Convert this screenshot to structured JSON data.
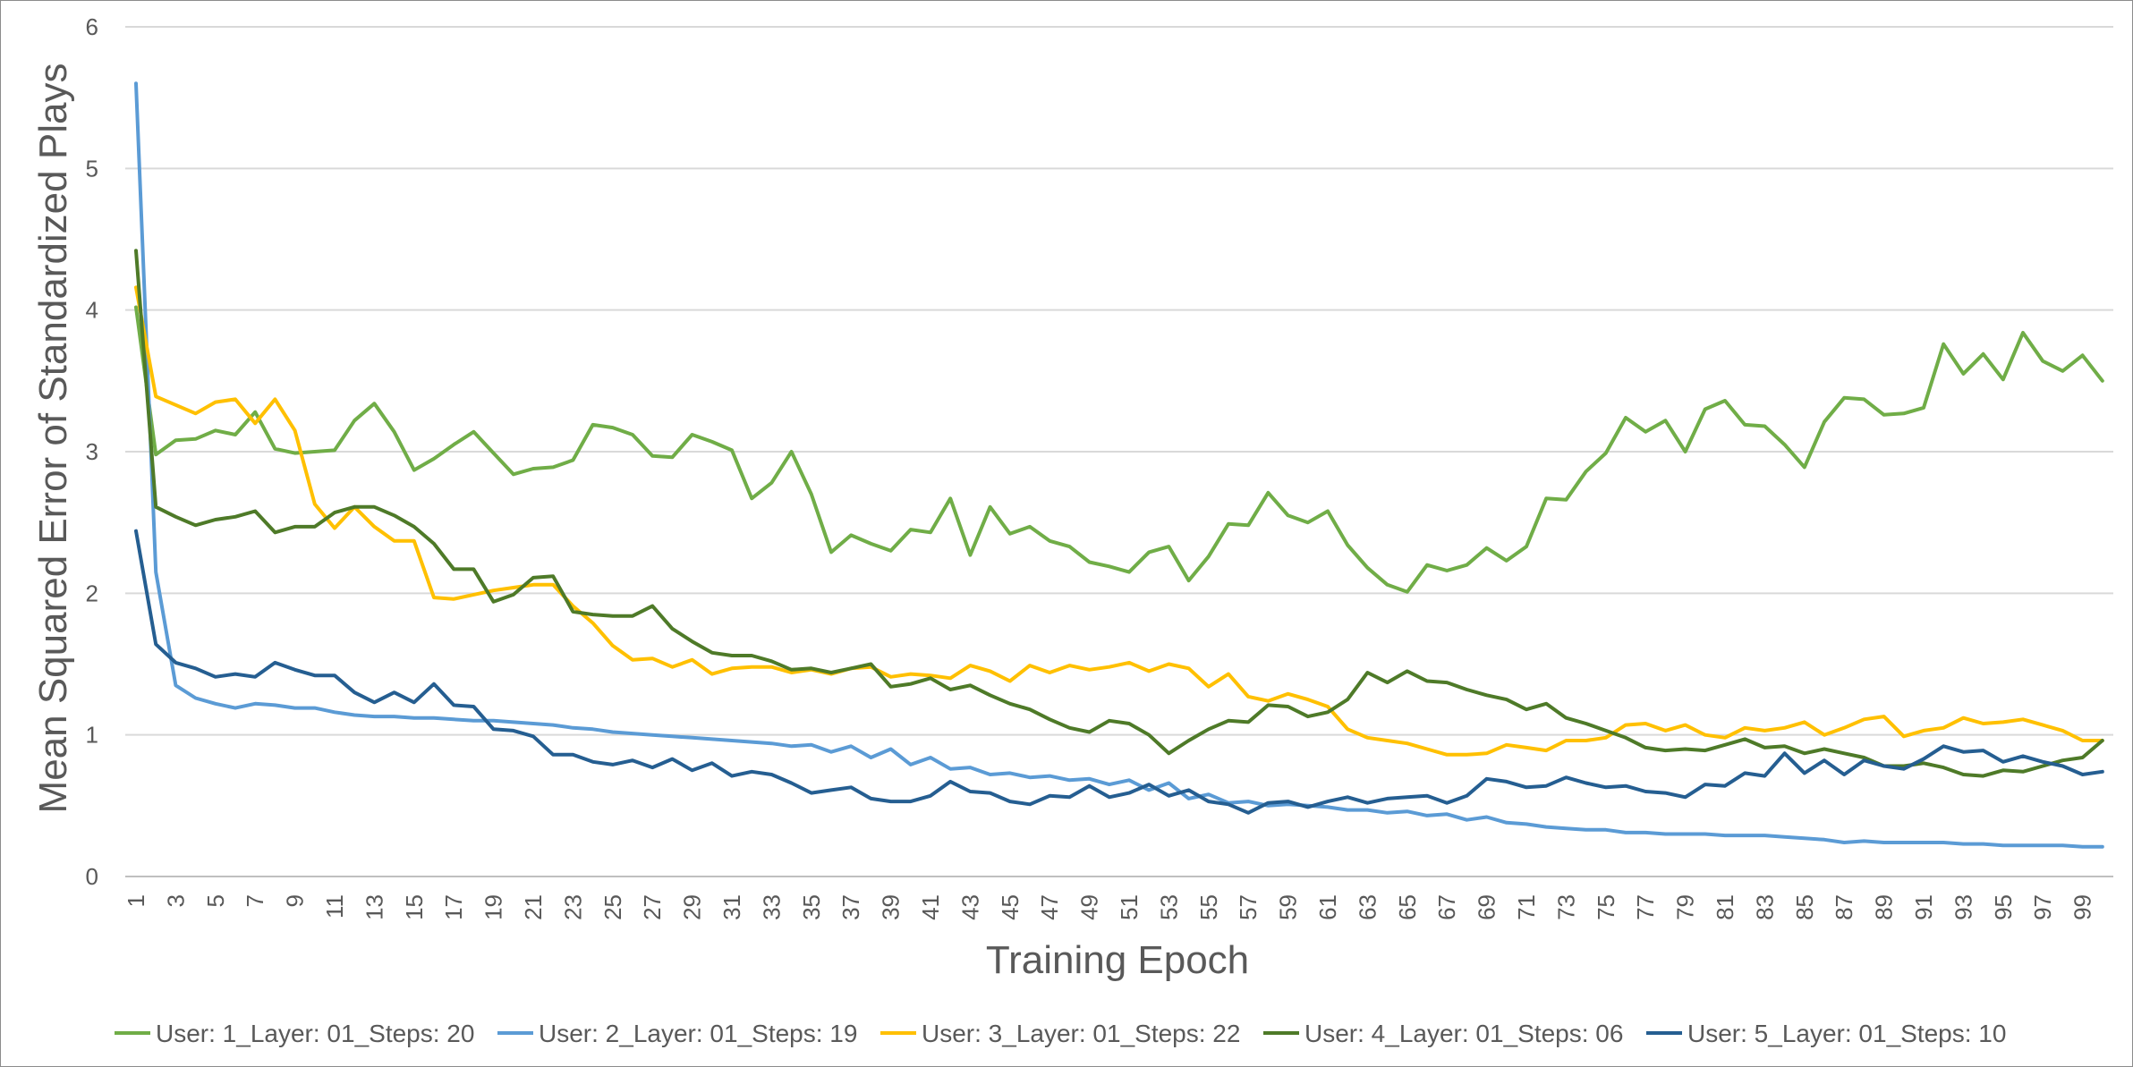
{
  "chart_data": {
    "type": "line",
    "xlabel": "Training Epoch",
    "ylabel": "Mean Squared Error of Standardized Plays",
    "ylim": [
      0,
      6
    ],
    "yticks": [
      0,
      1,
      2,
      3,
      4,
      5,
      6
    ],
    "xlim": [
      1,
      100
    ],
    "xticks": [
      1,
      3,
      5,
      7,
      9,
      11,
      13,
      15,
      17,
      19,
      21,
      23,
      25,
      27,
      29,
      31,
      33,
      35,
      37,
      39,
      41,
      43,
      45,
      47,
      49,
      51,
      53,
      55,
      57,
      59,
      61,
      63,
      65,
      67,
      69,
      71,
      73,
      75,
      77,
      79,
      81,
      83,
      85,
      87,
      89,
      91,
      93,
      95,
      97,
      99
    ],
    "grid": "horizontal",
    "legend_position": "bottom",
    "series": [
      {
        "name": "User: 1_Layer: 01_Steps: 20",
        "color": "#70ad47",
        "values": [
          4.02,
          2.98,
          3.08,
          3.09,
          3.15,
          3.12,
          3.28,
          3.02,
          2.99,
          3.0,
          3.01,
          3.22,
          3.34,
          3.14,
          2.87,
          2.95,
          3.05,
          3.14,
          2.99,
          2.84,
          2.88,
          2.89,
          2.94,
          3.19,
          3.17,
          3.12,
          2.97,
          2.96,
          3.12,
          3.07,
          3.01,
          2.67,
          2.78,
          3.0,
          2.7,
          2.29,
          2.41,
          2.35,
          2.3,
          2.45,
          2.43,
          2.67,
          2.27,
          2.61,
          2.42,
          2.47,
          2.37,
          2.33,
          2.22,
          2.19,
          2.15,
          2.29,
          2.33,
          2.09,
          2.26,
          2.49,
          2.48,
          2.71,
          2.55,
          2.5,
          2.58,
          2.34,
          2.18,
          2.06,
          2.01,
          2.2,
          2.16,
          2.2,
          2.32,
          2.23,
          2.33,
          2.67,
          2.66,
          2.86,
          2.99,
          3.24,
          3.14,
          3.22,
          3.0,
          3.3,
          3.36,
          3.19,
          3.18,
          3.05,
          2.89,
          3.21,
          3.38,
          3.37,
          3.26,
          3.27,
          3.31,
          3.76,
          3.55,
          3.69,
          3.51,
          3.84,
          3.64,
          3.57,
          3.68,
          3.5
        ]
      },
      {
        "name": "User: 2_Layer: 01_Steps: 19",
        "color": "#5b9bd5",
        "values": [
          5.6,
          2.15,
          1.35,
          1.26,
          1.22,
          1.19,
          1.22,
          1.21,
          1.19,
          1.19,
          1.16,
          1.14,
          1.13,
          1.13,
          1.12,
          1.12,
          1.11,
          1.1,
          1.1,
          1.09,
          1.08,
          1.07,
          1.05,
          1.04,
          1.02,
          1.01,
          1.0,
          0.99,
          0.98,
          0.97,
          0.96,
          0.95,
          0.94,
          0.92,
          0.93,
          0.88,
          0.92,
          0.84,
          0.9,
          0.79,
          0.84,
          0.76,
          0.77,
          0.72,
          0.73,
          0.7,
          0.71,
          0.68,
          0.69,
          0.65,
          0.68,
          0.61,
          0.66,
          0.55,
          0.58,
          0.52,
          0.53,
          0.5,
          0.51,
          0.5,
          0.49,
          0.47,
          0.47,
          0.45,
          0.46,
          0.43,
          0.44,
          0.4,
          0.42,
          0.38,
          0.37,
          0.35,
          0.34,
          0.33,
          0.33,
          0.31,
          0.31,
          0.3,
          0.3,
          0.3,
          0.29,
          0.29,
          0.29,
          0.28,
          0.27,
          0.26,
          0.24,
          0.25,
          0.24,
          0.24,
          0.24,
          0.24,
          0.23,
          0.23,
          0.22,
          0.22,
          0.22,
          0.22,
          0.21,
          0.21
        ]
      },
      {
        "name": "User: 3_Layer: 01_Steps: 22",
        "color": "#ffc000",
        "values": [
          4.16,
          3.39,
          3.33,
          3.27,
          3.35,
          3.37,
          3.2,
          3.37,
          3.15,
          2.63,
          2.46,
          2.61,
          2.47,
          2.37,
          2.37,
          1.97,
          1.96,
          1.99,
          2.02,
          2.04,
          2.06,
          2.06,
          1.91,
          1.79,
          1.63,
          1.53,
          1.54,
          1.48,
          1.53,
          1.43,
          1.47,
          1.48,
          1.48,
          1.44,
          1.46,
          1.43,
          1.47,
          1.48,
          1.41,
          1.43,
          1.42,
          1.4,
          1.49,
          1.45,
          1.38,
          1.49,
          1.44,
          1.49,
          1.46,
          1.48,
          1.51,
          1.45,
          1.5,
          1.47,
          1.34,
          1.43,
          1.27,
          1.24,
          1.29,
          1.25,
          1.2,
          1.04,
          0.98,
          0.96,
          0.94,
          0.9,
          0.86,
          0.86,
          0.87,
          0.93,
          0.91,
          0.89,
          0.96,
          0.96,
          0.98,
          1.07,
          1.08,
          1.03,
          1.07,
          1.0,
          0.98,
          1.05,
          1.03,
          1.05,
          1.09,
          1.0,
          1.05,
          1.11,
          1.13,
          0.99,
          1.03,
          1.05,
          1.12,
          1.08,
          1.09,
          1.11,
          1.07,
          1.03,
          0.96,
          0.96
        ]
      },
      {
        "name": "User: 4_Layer: 01_Steps: 06",
        "color": "#4e7a28",
        "values": [
          4.42,
          2.61,
          2.54,
          2.48,
          2.52,
          2.54,
          2.58,
          2.43,
          2.47,
          2.47,
          2.57,
          2.61,
          2.61,
          2.55,
          2.47,
          2.35,
          2.17,
          2.17,
          1.94,
          1.99,
          2.11,
          2.12,
          1.87,
          1.85,
          1.84,
          1.84,
          1.91,
          1.75,
          1.66,
          1.58,
          1.56,
          1.56,
          1.52,
          1.46,
          1.47,
          1.44,
          1.47,
          1.5,
          1.34,
          1.36,
          1.4,
          1.32,
          1.35,
          1.28,
          1.22,
          1.18,
          1.11,
          1.05,
          1.02,
          1.1,
          1.08,
          1.0,
          0.87,
          0.96,
          1.04,
          1.1,
          1.09,
          1.21,
          1.2,
          1.13,
          1.16,
          1.25,
          1.44,
          1.37,
          1.45,
          1.38,
          1.37,
          1.32,
          1.28,
          1.25,
          1.18,
          1.22,
          1.12,
          1.08,
          1.03,
          0.98,
          0.91,
          0.89,
          0.9,
          0.89,
          0.93,
          0.97,
          0.91,
          0.92,
          0.87,
          0.9,
          0.87,
          0.84,
          0.78,
          0.78,
          0.8,
          0.77,
          0.72,
          0.71,
          0.75,
          0.74,
          0.78,
          0.82,
          0.84,
          0.96
        ]
      },
      {
        "name": "User: 5_Layer: 01_Steps: 10",
        "color": "#255e91",
        "values": [
          2.44,
          1.64,
          1.51,
          1.47,
          1.41,
          1.43,
          1.41,
          1.51,
          1.46,
          1.42,
          1.42,
          1.3,
          1.23,
          1.3,
          1.23,
          1.36,
          1.21,
          1.2,
          1.04,
          1.03,
          0.99,
          0.86,
          0.86,
          0.81,
          0.79,
          0.82,
          0.77,
          0.83,
          0.75,
          0.8,
          0.71,
          0.74,
          0.72,
          0.66,
          0.59,
          0.61,
          0.63,
          0.55,
          0.53,
          0.53,
          0.57,
          0.67,
          0.6,
          0.59,
          0.53,
          0.51,
          0.57,
          0.56,
          0.64,
          0.56,
          0.59,
          0.65,
          0.57,
          0.61,
          0.53,
          0.51,
          0.45,
          0.52,
          0.53,
          0.49,
          0.53,
          0.56,
          0.52,
          0.55,
          0.56,
          0.57,
          0.52,
          0.57,
          0.69,
          0.67,
          0.63,
          0.64,
          0.7,
          0.66,
          0.63,
          0.64,
          0.6,
          0.59,
          0.56,
          0.65,
          0.64,
          0.73,
          0.71,
          0.87,
          0.73,
          0.82,
          0.72,
          0.82,
          0.78,
          0.76,
          0.83,
          0.92,
          0.88,
          0.89,
          0.81,
          0.85,
          0.81,
          0.78,
          0.72,
          0.74
        ]
      }
    ]
  }
}
